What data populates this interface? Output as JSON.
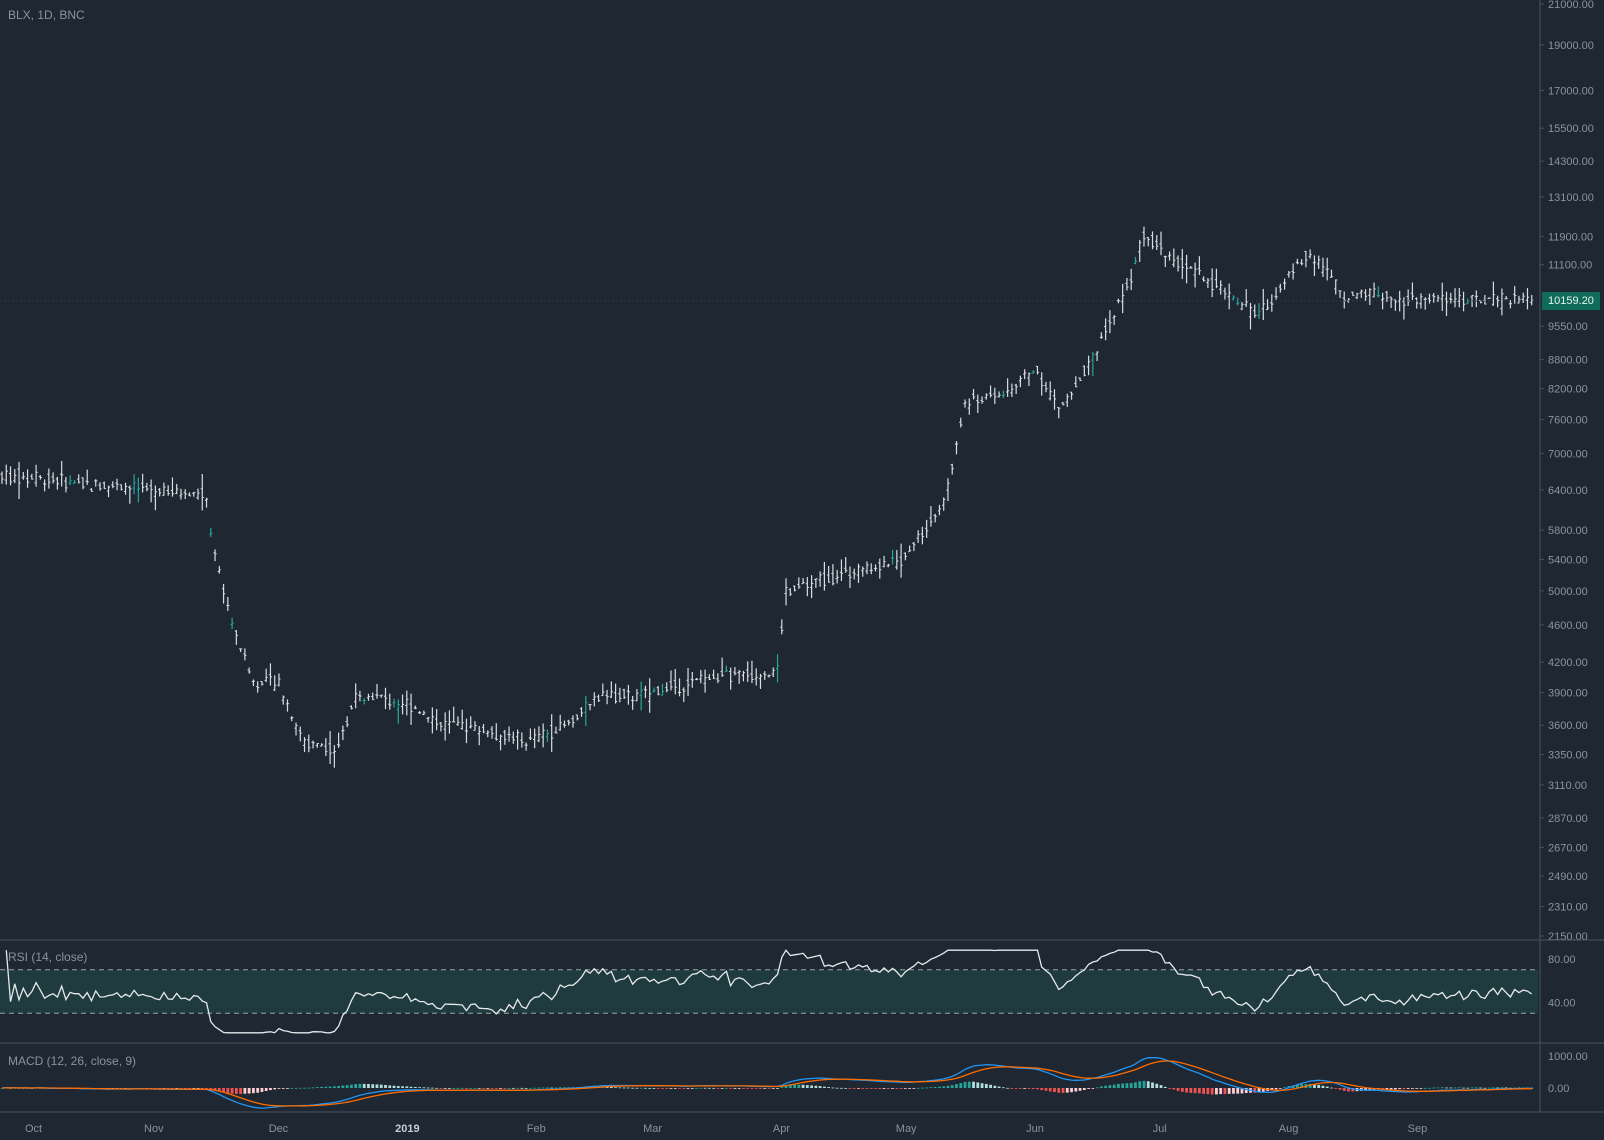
{
  "header": {
    "symbol": "BLX, 1D, BNC"
  },
  "price_axis": {
    "labels": [
      "21000.00",
      "19000.00",
      "17000.00",
      "15500.00",
      "14300.00",
      "13100.00",
      "11900.00",
      "11100.00",
      "9550.00",
      "8800.00",
      "8200.00",
      "7600.00",
      "7000.00",
      "6400.00",
      "5800.00",
      "5400.00",
      "5000.00",
      "4600.00",
      "4200.00",
      "3900.00",
      "3600.00",
      "3350.00",
      "3110.00",
      "2870.00",
      "2670.00",
      "2490.00",
      "2310.00",
      "2150.00"
    ],
    "last_price": "10159.20"
  },
  "time_axis": {
    "labels": [
      "Oct",
      "Nov",
      "Dec",
      "2019",
      "Feb",
      "Mar",
      "Apr",
      "May",
      "Jun",
      "Jul",
      "Aug",
      "Sep"
    ]
  },
  "rsi": {
    "title": "RSI (14, close)",
    "levels": [
      "80.00",
      "40.00"
    ],
    "upper_band": 70,
    "lower_band": 30
  },
  "macd": {
    "title": "MACD (12, 26, close, 9)",
    "levels": [
      "1000.00",
      "0.00"
    ]
  },
  "colors": {
    "background": "#1e2732",
    "bar": "#d8dde3",
    "bar_up": "#26a69a",
    "rsi_fill": "#203b3f",
    "macd_line": "#2196f3",
    "signal_line": "#ff6d00",
    "hist_pos": "#26a69a",
    "hist_pos_light": "#b2dfdb",
    "hist_neg": "#ef5350",
    "hist_neg_light": "#ffcdd2",
    "grid_text": "#8a939e",
    "last_price_bg": "#0f6b5a"
  },
  "chart_data": {
    "type": "line",
    "title": "BLX, 1D, BNC",
    "scale": "log",
    "ylim": [
      2150,
      21000
    ],
    "series": [
      {
        "name": "BLX",
        "x": [
          "2018-10-01",
          "2018-10-15",
          "2018-11-01",
          "2018-11-14",
          "2018-11-15",
          "2018-11-20",
          "2018-11-25",
          "2018-12-01",
          "2018-12-07",
          "2018-12-15",
          "2018-12-20",
          "2018-12-25",
          "2019-01-01",
          "2019-01-10",
          "2019-01-15",
          "2019-01-30",
          "2019-02-08",
          "2019-02-18",
          "2019-02-24",
          "2019-03-15",
          "2019-03-31",
          "2019-04-02",
          "2019-04-15",
          "2019-04-30",
          "2019-05-10",
          "2019-05-15",
          "2019-05-25",
          "2019-06-01",
          "2019-06-07",
          "2019-06-15",
          "2019-06-25",
          "2019-06-27",
          "2019-07-05",
          "2019-07-15",
          "2019-07-25",
          "2019-08-01",
          "2019-08-06",
          "2019-08-15",
          "2019-08-20",
          "2019-08-30",
          "2019-09-05",
          "2019-09-20"
        ],
        "values": [
          6600,
          6500,
          6400,
          6300,
          5600,
          4600,
          4000,
          4000,
          3450,
          3400,
          3900,
          3850,
          3800,
          3600,
          3600,
          3450,
          3600,
          3900,
          3850,
          4050,
          4100,
          5000,
          5200,
          5400,
          6200,
          7900,
          8100,
          8600,
          7800,
          8800,
          11000,
          12000,
          11200,
          10500,
          9800,
          10800,
          11500,
          10200,
          10400,
          10200,
          10200,
          10159.2
        ]
      }
    ]
  }
}
